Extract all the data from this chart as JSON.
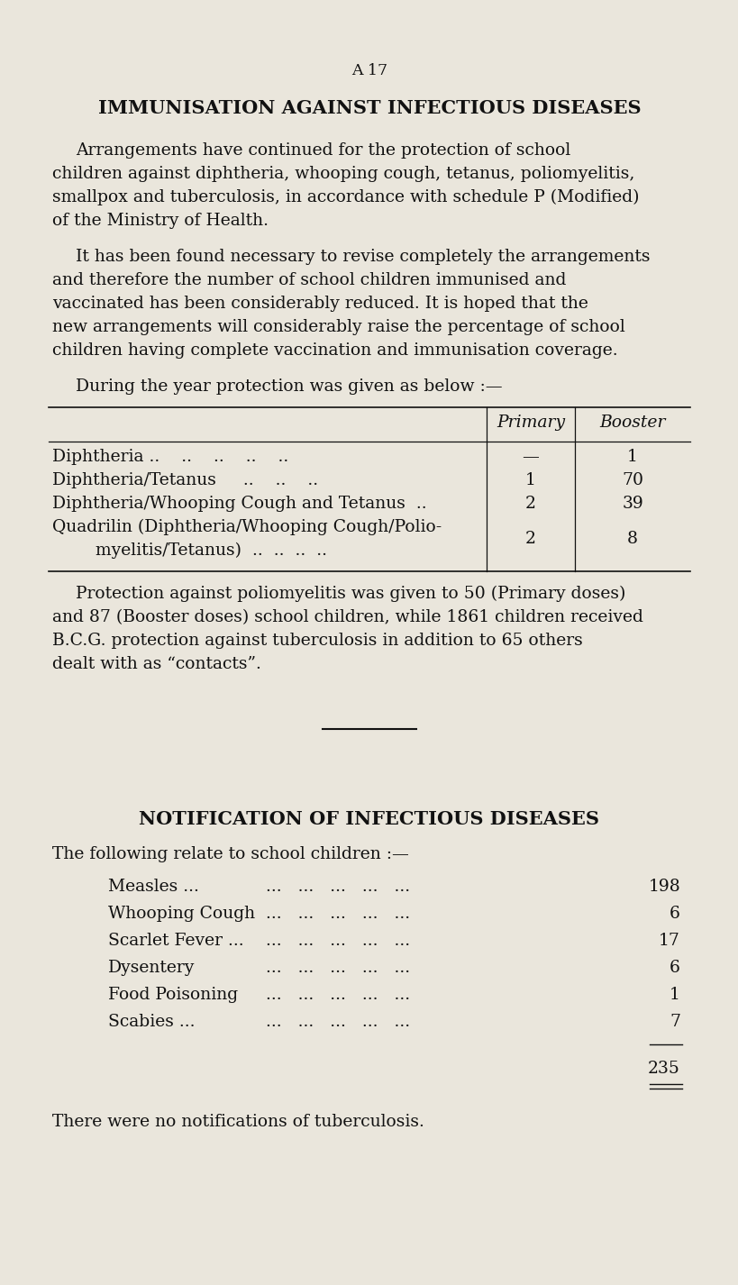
{
  "bg_color": "#eae6dc",
  "text_color": "#111111",
  "page_number": "A 17",
  "section1_title": "IMMUNISATION AGAINST INFECTIOUS DISEASES",
  "para1_lines": [
    "Arrangements have continued for the protection of school",
    "children against diphtheria, whooping cough, tetanus, poliomyelitis,",
    "smallpox and tuberculosis, in accordance with schedule P (Modified)",
    "of the Ministry of Health."
  ],
  "para2_lines": [
    "It has been found necessary to revise completely the arrangements",
    "and therefore the number of school children immunised and",
    "vaccinated has been considerably reduced. It is hoped that the",
    "new arrangements will considerably raise the percentage of school",
    "children having complete vaccination and immunisation coverage."
  ],
  "para3_intro": "During the year protection was given as below :—",
  "table_header_primary": "Primary",
  "table_header_booster": "Booster",
  "table_row1_label": "Diphtheria ..    ..    ..    ..    ..",
  "table_row1_primary": "—",
  "table_row1_booster": "1",
  "table_row2_label": "Diphtheria/Tetanus     ..    ..    ..",
  "table_row2_primary": "1",
  "table_row2_booster": "70",
  "table_row3_label": "Diphtheria/Whooping Cough and Tetanus  ..",
  "table_row3_primary": "2",
  "table_row3_booster": "39",
  "table_row4_label1": "Quadrilin (Diphtheria/Whooping Cough/Polio-",
  "table_row4_label2": "    myelitis/Tetanus)  ..  ..  ..  ..",
  "table_row4_primary": "2",
  "table_row4_booster": "8",
  "para4_lines": [
    "Protection against poliomyelitis was given to 50 (Primary doses)",
    "and 87 (Booster doses) school children, while 1861 children received",
    "B.C.G. protection against tuberculosis in addition to 65 others",
    "dealt with as “contacts”."
  ],
  "section2_title": "NOTIFICATION OF INFECTIOUS DISEASES",
  "para5_intro": "The following relate to school children :—",
  "disease_labels": [
    "Measles ...",
    "Whooping Cough",
    "Scarlet Fever ...",
    "Dysentery",
    "Food Poisoning",
    "Scabies ..."
  ],
  "disease_dots": [
    "  ...   ...   ...   ...   ...",
    "  ...   ...   ...   ...   ...",
    "  ...   ...   ...   ...   ...",
    "  ...   ...   ...   ...   ...",
    "  ...   ...   ...   ...   ...",
    "  ...   ...   ...   ...   ..."
  ],
  "disease_values": [
    "198",
    "6",
    "17",
    "6",
    "1",
    "7"
  ],
  "total": "235",
  "final_note": "There were no notifications of tuberculosis."
}
